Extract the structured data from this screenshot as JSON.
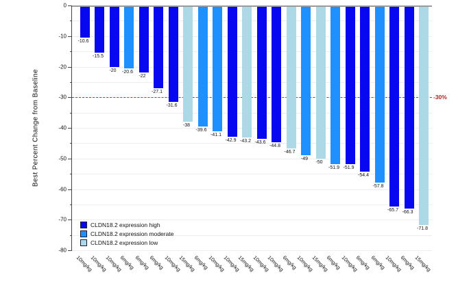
{
  "chart_data": {
    "type": "bar",
    "title": "",
    "xlabel": "",
    "ylabel": "Best Percent Change from Baseline",
    "ylim": [
      -80,
      0
    ],
    "yticks": [
      0,
      -10,
      -20,
      -30,
      -40,
      -50,
      -60,
      -70,
      -80
    ],
    "minor_grid_step": 5,
    "grid": true,
    "reference_line": {
      "y": -30,
      "label": "-30%",
      "line_color": "#cc2b2b",
      "label_color": "#b22222",
      "style": "dashed"
    },
    "categories": [
      "10mg/kg",
      "10mg/kg",
      "10mg/kg",
      "6mg/kg",
      "6mg/kg",
      "6mg/kg",
      "10mg/kg",
      "15mg/kg",
      "6mg/kg",
      "10mg/kg",
      "10mg/kg",
      "15mg/kg",
      "10mg/kg",
      "10mg/kg",
      "6mg/kg",
      "10mg/kg",
      "15mg/kg",
      "6mg/kg",
      "10mg/kg",
      "6mg/kg",
      "6mg/kg",
      "10mg/kg",
      "6mg/kg",
      "15mg/kg"
    ],
    "points": [
      {
        "dose": "10mg/kg",
        "value": -10.6,
        "group": "high"
      },
      {
        "dose": "10mg/kg",
        "value": -15.5,
        "group": "high"
      },
      {
        "dose": "10mg/kg",
        "value": -20,
        "group": "high"
      },
      {
        "dose": "6mg/kg",
        "value": -20.6,
        "group": "moderate"
      },
      {
        "dose": "6mg/kg",
        "value": -22,
        "group": "high"
      },
      {
        "dose": "6mg/kg",
        "value": -27.1,
        "group": "high"
      },
      {
        "dose": "10mg/kg",
        "value": -31.6,
        "group": "high"
      },
      {
        "dose": "15mg/kg",
        "value": -38,
        "group": "low"
      },
      {
        "dose": "6mg/kg",
        "value": -39.6,
        "group": "moderate"
      },
      {
        "dose": "10mg/kg",
        "value": -41.1,
        "group": "moderate"
      },
      {
        "dose": "10mg/kg",
        "value": -42.9,
        "group": "high"
      },
      {
        "dose": "15mg/kg",
        "value": -43.2,
        "group": "low"
      },
      {
        "dose": "10mg/kg",
        "value": -43.6,
        "group": "high"
      },
      {
        "dose": "10mg/kg",
        "value": -44.8,
        "group": "high"
      },
      {
        "dose": "6mg/kg",
        "value": -46.7,
        "group": "low"
      },
      {
        "dose": "10mg/kg",
        "value": -49,
        "group": "moderate"
      },
      {
        "dose": "15mg/kg",
        "value": -50,
        "group": "low"
      },
      {
        "dose": "6mg/kg",
        "value": -51.9,
        "group": "moderate"
      },
      {
        "dose": "10mg/kg",
        "value": -51.9,
        "group": "high"
      },
      {
        "dose": "6mg/kg",
        "value": -54.4,
        "group": "high"
      },
      {
        "dose": "6mg/kg",
        "value": -57.8,
        "group": "moderate"
      },
      {
        "dose": "10mg/kg",
        "value": -65.7,
        "group": "high"
      },
      {
        "dose": "6mg/kg",
        "value": -66.3,
        "group": "high"
      },
      {
        "dose": "15mg/kg",
        "value": -71.8,
        "group": "low"
      }
    ],
    "colors": {
      "high": "#0808f0",
      "moderate": "#1e90ff",
      "low": "#add8e6"
    },
    "legend": [
      {
        "key": "high",
        "label": "CLDN18.2 expression high",
        "color": "#0808f0"
      },
      {
        "key": "moderate",
        "label": "CLDN18.2 expression moderate",
        "color": "#1e90ff"
      },
      {
        "key": "low",
        "label": "CLDN18.2 expression low",
        "color": "#add8e6"
      }
    ],
    "legend_position": "lower left",
    "axis_color": "#444444",
    "gridline_color": "#ededed",
    "zero_line_color": "#9a9a9a"
  }
}
